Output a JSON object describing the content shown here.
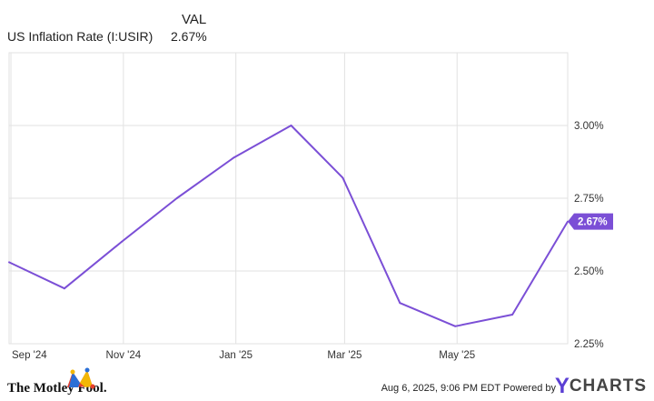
{
  "legend": {
    "header_value_label": "VAL",
    "series_label": "US Inflation Rate (I:USIR)",
    "series_value": "2.67%"
  },
  "chart_data": {
    "type": "line",
    "title": "",
    "xlabel": "",
    "ylabel": "",
    "x": [
      "2024-08-31",
      "2024-09-30",
      "2024-10-31",
      "2024-11-30",
      "2024-12-31",
      "2025-01-31",
      "2025-02-28",
      "2025-03-31",
      "2025-04-30",
      "2025-05-31",
      "2025-06-30"
    ],
    "series": [
      {
        "name": "US Inflation Rate (I:USIR)",
        "values": [
          2.53,
          2.44,
          2.6,
          2.75,
          2.89,
          3.0,
          2.82,
          2.39,
          2.31,
          2.35,
          2.67
        ]
      }
    ],
    "x_ticks": [
      "Sep '24",
      "Nov '24",
      "Jan '25",
      "Mar '25",
      "May '25"
    ],
    "y_ticks": [
      "2.25%",
      "2.50%",
      "2.75%",
      "3.00%"
    ],
    "y_tick_values": [
      2.25,
      2.5,
      2.75,
      3.0
    ],
    "ylim": [
      2.25,
      3.25
    ],
    "last_value_label": "2.67%",
    "grid": true,
    "line_color": "#7b4fd6",
    "axis_side": "right"
  },
  "footer": {
    "logo_text": "The Motley Fool.",
    "timestamp": "Aug 6, 2025, 9:06 PM EDT",
    "powered_by": "Powered by",
    "brand_y": "Y",
    "brand_name": "CHARTS"
  }
}
